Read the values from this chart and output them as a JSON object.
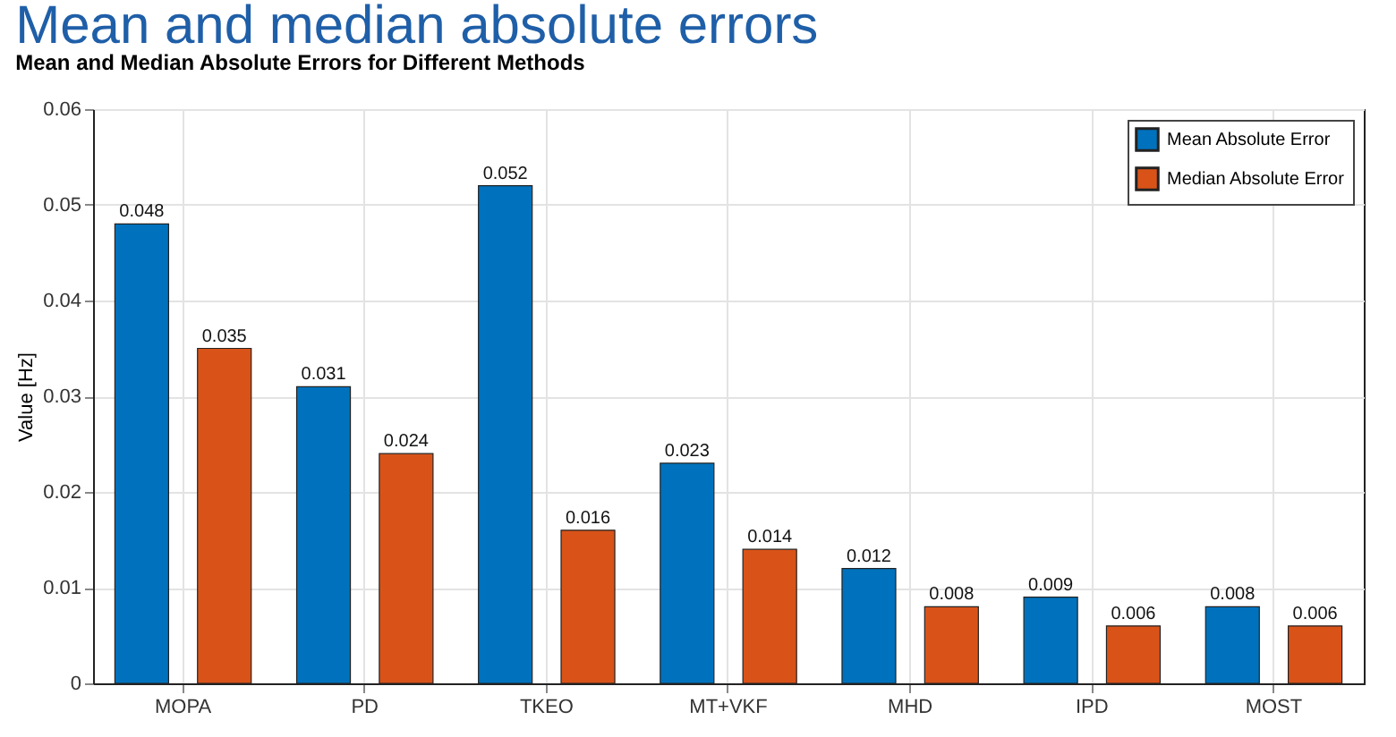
{
  "chart_data": {
    "type": "bar",
    "title": "Mean and median absolute errors",
    "subtitle": "Mean and Median Absolute Errors for Different Methods",
    "ylabel": "Value [Hz]",
    "categories": [
      "MOPA",
      "PD",
      "TKEO",
      "MT+VKF",
      "MHD",
      "IPD",
      "MOST"
    ],
    "series": [
      {
        "name": "Mean Absolute Error",
        "color": "#0072bd",
        "values": [
          0.048,
          0.031,
          0.052,
          0.023,
          0.012,
          0.009,
          0.008
        ]
      },
      {
        "name": "Median Absolute Error",
        "color": "#d95319",
        "values": [
          0.035,
          0.024,
          0.016,
          0.014,
          0.008,
          0.006,
          0.006
        ]
      }
    ],
    "ylim": [
      0,
      0.06
    ],
    "yticks": [
      0,
      0.01,
      0.02,
      0.03,
      0.04,
      0.05,
      0.06
    ],
    "grid": true,
    "legend": "top right",
    "data_labels": true
  }
}
